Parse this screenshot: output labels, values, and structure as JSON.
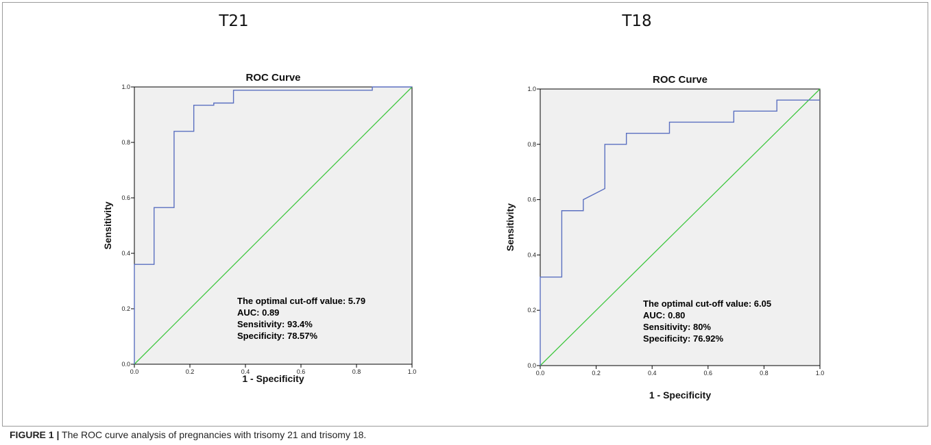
{
  "figure": {
    "caption_label": "FIGURE 1 |",
    "caption_text": "The ROC curve analysis of pregnancies with trisomy 21 and trisomy 18."
  },
  "colors": {
    "roc_line": "#5a6fc0",
    "reference_line": "#3cc63c",
    "plot_background": "#f0f0f0"
  },
  "chart_data": [
    {
      "type": "line",
      "panel_title": "T21",
      "title": "ROC Curve",
      "xlabel": "1 - Specificity",
      "ylabel": "Sensitivity",
      "xlim": [
        0,
        1
      ],
      "ylim": [
        0,
        1
      ],
      "xticks": [
        "0.0",
        "0.2",
        "0.4",
        "0.6",
        "0.8",
        "1.0"
      ],
      "yticks": [
        "0.0",
        "0.2",
        "0.4",
        "0.6",
        "0.8",
        "1.0"
      ],
      "grid": false,
      "series": [
        {
          "x": [
            0,
            0,
            0.071,
            0.071,
            0.143,
            0.143,
            0.214,
            0.214,
            0.286,
            0.286,
            0.357,
            0.357,
            0.857,
            0.857,
            1.0
          ],
          "y": [
            0,
            0.36,
            0.36,
            0.565,
            0.565,
            0.84,
            0.84,
            0.934,
            0.934,
            0.942,
            0.942,
            0.988,
            0.988,
            1.0,
            1.0
          ]
        },
        {
          "x": [
            0,
            1
          ],
          "y": [
            0,
            1
          ]
        }
      ],
      "annotation": [
        "The optimal cut-off value: 5.79",
        "AUC: 0.89",
        "Sensitivity: 93.4%",
        "Specificity: 78.57%"
      ]
    },
    {
      "type": "line",
      "panel_title": "T18",
      "title": "ROC Curve",
      "xlabel": "1 - Specificity",
      "ylabel": "Sensitivity",
      "xlim": [
        0,
        1
      ],
      "ylim": [
        0,
        1
      ],
      "xticks": [
        "0.0",
        "0.2",
        "0.4",
        "0.6",
        "0.8",
        "1.0"
      ],
      "yticks": [
        "0.0",
        "0.2",
        "0.4",
        "0.6",
        "0.8",
        "1.0"
      ],
      "grid": false,
      "series": [
        {
          "x": [
            0,
            0,
            0.077,
            0.077,
            0.154,
            0.154,
            0.231,
            0.231,
            0.308,
            0.308,
            0.462,
            0.462,
            0.692,
            0.692,
            0.846,
            0.846,
            1.0
          ],
          "y": [
            0,
            0.32,
            0.32,
            0.56,
            0.56,
            0.6,
            0.64,
            0.8,
            0.8,
            0.84,
            0.84,
            0.88,
            0.88,
            0.92,
            0.92,
            0.96,
            0.96
          ]
        },
        {
          "x": [
            0,
            1
          ],
          "y": [
            0,
            1
          ]
        }
      ],
      "annotation": [
        "The optimal cut-off value: 6.05",
        "AUC: 0.80",
        "Sensitivity: 80%",
        "Specificity: 76.92%"
      ]
    }
  ]
}
